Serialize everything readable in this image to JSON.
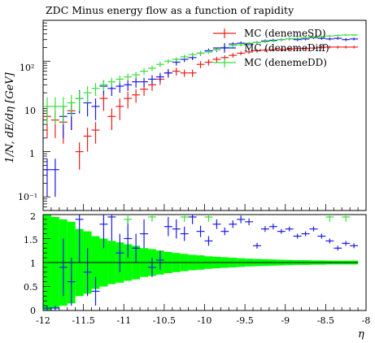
{
  "chart_data": {
    "type": "scatter",
    "title": "ZDC Minus energy flow as a function of rapidity",
    "xlabel": "η",
    "ylabel": "1/N, dE/dη [GeV]",
    "x_ticklabels": [
      "-12",
      "-11.5",
      "-11",
      "-10.5",
      "-10",
      "-9.5",
      "-9",
      "-8.5",
      "-8"
    ],
    "y_ticklabels_top": [
      "10⁻¹",
      "1",
      "10",
      "10²"
    ],
    "y_ticklabels_ratio": [
      "0",
      "0.5",
      "1",
      "1.5",
      "2"
    ],
    "xlim": [
      -12,
      -8
    ],
    "ylim_top": [
      0.05,
      800
    ],
    "yscale_top": "log",
    "ylim_ratio": [
      0,
      2
    ],
    "legend_position": "top-right",
    "colors": {
      "sd": "#e8201e",
      "diff": "#1c1ce6",
      "dd": "#3adf3a",
      "band": "#00ff00",
      "ref": "#000000"
    },
    "series": [
      {
        "name": "MC (denemeSD)",
        "x": [
          -11.95,
          -11.85,
          -11.75,
          -11.65,
          -11.55,
          -11.45,
          -11.35,
          -11.25,
          -11.15,
          -11.05,
          -10.95,
          -10.85,
          -10.75,
          -10.65,
          -10.55,
          -10.45,
          -10.35,
          -10.25,
          -10.15,
          -10.05,
          -9.95,
          -9.85,
          -9.75,
          -9.65,
          -9.55,
          -9.45,
          -9.35,
          -9.25,
          -9.15,
          -9.05,
          -8.95,
          -8.85,
          -8.75,
          -8.65,
          -8.55,
          -8.45,
          -8.35,
          -8.25,
          -8.15
        ],
        "y": [
          6,
          5,
          4.5,
          8,
          1,
          2.2,
          3,
          15,
          6,
          10,
          15,
          18,
          24,
          30,
          40,
          55,
          60,
          55,
          55,
          85,
          95,
          110,
          120,
          135,
          150,
          160,
          170,
          175,
          180,
          180,
          185,
          190,
          190,
          195,
          200,
          205,
          205,
          205,
          205
        ],
        "yerr": [
          4,
          3,
          3,
          5,
          0.6,
          1.2,
          1.5,
          7,
          3,
          5,
          6,
          6,
          7,
          8,
          10,
          12,
          12,
          10,
          10,
          15,
          15,
          15,
          15,
          15,
          15,
          15,
          15,
          15,
          15,
          15,
          15,
          15,
          15,
          15,
          15,
          15,
          15,
          15,
          15
        ]
      },
      {
        "name": "MC (denemeDiff)",
        "x": [
          -11.95,
          -11.85,
          -11.75,
          -11.65,
          -11.55,
          -11.45,
          -11.35,
          -11.25,
          -11.15,
          -11.05,
          -10.95,
          -10.85,
          -10.75,
          -10.65,
          -10.55,
          -10.45,
          -10.35,
          -10.25,
          -10.15,
          -10.05,
          -9.95,
          -9.85,
          -9.75,
          -9.65,
          -9.55,
          -9.45,
          -9.35,
          -9.25,
          -9.15,
          -9.05,
          -8.95,
          -8.85,
          -8.75,
          -8.65,
          -8.55,
          -8.45,
          -8.35,
          -8.25,
          -8.15
        ],
        "y": [
          0.4,
          0.4,
          6,
          7,
          15,
          12,
          10,
          28,
          25,
          28,
          30,
          35,
          35,
          40,
          45,
          55,
          95,
          110,
          120,
          150,
          170,
          180,
          200,
          240,
          250,
          240,
          260,
          280,
          290,
          300,
          310,
          300,
          310,
          330,
          320,
          310,
          320,
          300,
          310
        ],
        "yerr": [
          0.3,
          0.3,
          4,
          4,
          8,
          6,
          5,
          10,
          8,
          8,
          8,
          9,
          8,
          9,
          10,
          10,
          15,
          15,
          15,
          18,
          20,
          20,
          20,
          22,
          22,
          20,
          20,
          22,
          22,
          22,
          22,
          22,
          22,
          22,
          22,
          22,
          22,
          22,
          22
        ]
      },
      {
        "name": "MC (denemeDD)",
        "x": [
          -11.95,
          -11.85,
          -11.75,
          -11.65,
          -11.55,
          -11.45,
          -11.35,
          -11.25,
          -11.15,
          -11.05,
          -10.95,
          -10.85,
          -10.75,
          -10.65,
          -10.55,
          -10.45,
          -10.35,
          -10.25,
          -10.15,
          -10.05,
          -9.95,
          -9.85,
          -9.75,
          -9.65,
          -9.55,
          -9.45,
          -9.35,
          -9.25,
          -9.15,
          -9.05,
          -8.95,
          -8.85,
          -8.75,
          -8.65,
          -8.55,
          -8.45,
          -8.35,
          -8.25,
          -8.15
        ],
        "y": [
          10,
          10,
          10,
          12,
          15,
          20,
          25,
          30,
          35,
          40,
          45,
          50,
          60,
          70,
          85,
          100,
          110,
          125,
          140,
          150,
          160,
          180,
          200,
          220,
          230,
          250,
          260,
          270,
          280,
          300,
          310,
          320,
          330,
          340,
          350,
          360,
          370,
          380,
          380
        ],
        "yerr": [
          6,
          6,
          6,
          6,
          7,
          8,
          8,
          8,
          8,
          8,
          8,
          8,
          10,
          10,
          12,
          12,
          12,
          15,
          15,
          15,
          15,
          15,
          18,
          18,
          18,
          18,
          18,
          18,
          18,
          18,
          18,
          18,
          18,
          18,
          18,
          18,
          18,
          18,
          18
        ]
      }
    ],
    "ratio": {
      "reference_value": 1,
      "band_x_edges": [
        -12,
        -11.9,
        -11.8,
        -11.7,
        -11.6,
        -11.5,
        -11.4,
        -11.3,
        -11.2,
        -11.1,
        -11,
        -10.9,
        -10.8,
        -10.7,
        -10.6,
        -10.5,
        -10.4,
        -10.3,
        -10.2,
        -10.1,
        -10,
        -9.9,
        -9.8,
        -9.7,
        -9.6,
        -9.5,
        -9.4,
        -9.3,
        -9.2,
        -9.1,
        -9,
        -8.9,
        -8.8,
        -8.7,
        -8.6,
        -8.5,
        -8.4,
        -8.3,
        -8.2,
        -8.1
      ],
      "band_halfwidth": [
        1.0,
        0.95,
        0.9,
        0.85,
        0.7,
        0.65,
        0.55,
        0.5,
        0.45,
        0.42,
        0.38,
        0.35,
        0.3,
        0.28,
        0.25,
        0.22,
        0.2,
        0.18,
        0.16,
        0.15,
        0.13,
        0.12,
        0.11,
        0.1,
        0.09,
        0.08,
        0.075,
        0.07,
        0.065,
        0.06,
        0.055,
        0.05,
        0.05,
        0.045,
        0.045,
        0.04,
        0.04,
        0.04,
        0.04
      ],
      "series": [
        {
          "name": "MC (denemeDiff)",
          "x": [
            -11.95,
            -11.85,
            -11.75,
            -11.65,
            -11.55,
            -11.45,
            -11.35,
            -11.25,
            -11.15,
            -11.05,
            -10.95,
            -10.85,
            -10.75,
            -10.65,
            -10.55,
            -10.45,
            -10.35,
            -10.25,
            -10.15,
            -10.05,
            -9.95,
            -9.85,
            -9.75,
            -9.65,
            -9.55,
            -9.45,
            -9.35,
            -9.25,
            -9.15,
            -9.05,
            -8.95,
            -8.85,
            -8.75,
            -8.65,
            -8.55,
            -8.45,
            -8.35,
            -8.25,
            -8.15
          ],
          "y": [
            0.05,
            0.05,
            0.9,
            0.6,
            1.9,
            0.8,
            0.4,
            1.8,
            1.95,
            1.2,
            1.5,
            1.3,
            1.6,
            0.9,
            1.05,
            1.75,
            1.7,
            1.6,
            1.95,
            1.65,
            1.45,
            1.8,
            1.65,
            1.8,
            1.9,
            1.85,
            1.35,
            1.7,
            1.75,
            1.65,
            1.7,
            1.55,
            1.6,
            1.7,
            1.55,
            1.45,
            1.3,
            1.4,
            1.35
          ],
          "yerr": [
            0.05,
            0.05,
            0.6,
            0.5,
            0.9,
            0.5,
            0.3,
            0.5,
            0.5,
            0.4,
            0.4,
            0.3,
            0.3,
            0.2,
            0.2,
            0.2,
            0.2,
            0.15,
            0.15,
            0.12,
            0.1,
            0.1,
            0.08,
            0.08,
            0.08,
            0.07,
            0.06,
            0.06,
            0.06,
            0.05,
            0.05,
            0.05,
            0.05,
            0.05,
            0.05,
            0.05,
            0.05,
            0.05,
            0.05
          ]
        },
        {
          "name": "MC (denemeDD)",
          "x": [
            -11.95,
            -11.85,
            -11.75,
            -11.65,
            -11.55,
            -11.45,
            -11.35,
            -11.25,
            -11.15,
            -11.05,
            -10.95,
            -10.85,
            -10.75,
            -10.65,
            -10.55,
            -10.45,
            -10.35,
            -10.25,
            -10.15,
            -10.05,
            -9.95,
            -9.85,
            -9.75,
            -9.65,
            -9.55,
            -9.45,
            -9.35,
            -9.25,
            -9.15,
            -9.05,
            -8.95,
            -8.85,
            -8.75,
            -8.65,
            -8.55,
            -8.45,
            -8.35,
            -8.25,
            -8.15
          ],
          "y": [
            2.1,
            2.1,
            2.1,
            2.1,
            2.1,
            2.1,
            2.1,
            2.1,
            2.1,
            2.1,
            1.9,
            2.1,
            2.1,
            1.95,
            2.1,
            2.1,
            2.1,
            1.95,
            2.1,
            2.1,
            1.95,
            2.1,
            2.1,
            2.1,
            2.1,
            2.1,
            2.1,
            2.1,
            2.1,
            2.1,
            2.1,
            2.1,
            2.1,
            2.1,
            2.1,
            1.95,
            2.1,
            1.95,
            2.1
          ],
          "yerr": [
            0.1,
            0.1,
            0.1,
            0.1,
            0.1,
            0.1,
            0.1,
            0.1,
            0.1,
            0.1,
            0.1,
            0.1,
            0.1,
            0.1,
            0.1,
            0.1,
            0.1,
            0.1,
            0.1,
            0.1,
            0.1,
            0.1,
            0.1,
            0.1,
            0.1,
            0.1,
            0.1,
            0.1,
            0.1,
            0.1,
            0.1,
            0.1,
            0.1,
            0.1,
            0.1,
            0.1,
            0.1,
            0.1,
            0.1
          ]
        }
      ]
    }
  }
}
